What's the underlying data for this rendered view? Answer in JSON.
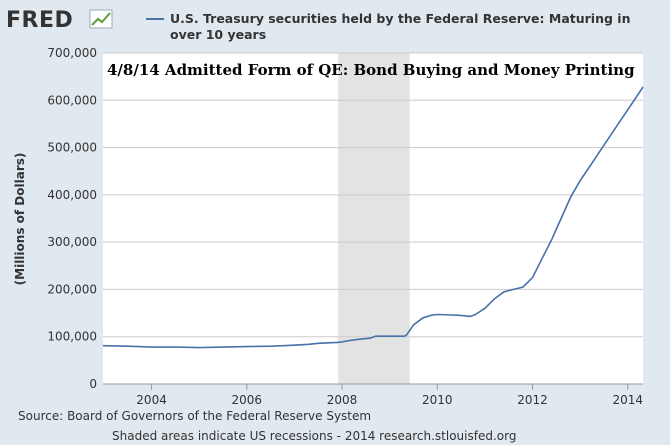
{
  "brand": {
    "logo": "FRED",
    "logo_icon": "trend-chart-icon"
  },
  "chart_data": {
    "type": "line",
    "series": [
      {
        "name": "U.S. Treasury securities held by the Federal Reserve: Maturing in over 10 years",
        "name_lines": [
          "U.S. Treasury securities held by the Federal Reserve: Maturing in",
          "over 10 years"
        ],
        "color": "#4572a7",
        "x": [
          2002.98,
          2003.5,
          2004.0,
          2004.5,
          2005.0,
          2005.5,
          2006.0,
          2006.5,
          2007.0,
          2007.3,
          2007.5,
          2007.9,
          2008.0,
          2008.1,
          2008.3,
          2008.6,
          2008.7,
          2009.0,
          2009.3,
          2009.35,
          2009.5,
          2009.7,
          2009.9,
          2010.0,
          2010.3,
          2010.5,
          2010.7,
          2010.8,
          2011.0,
          2011.2,
          2011.4,
          2011.6,
          2011.8,
          2011.9,
          2012.0,
          2012.2,
          2012.4,
          2012.6,
          2012.8,
          2013.0,
          2013.2,
          2013.4,
          2013.6,
          2013.8,
          2014.0,
          2014.2,
          2014.32
        ],
        "y": [
          81000,
          80000,
          78000,
          78000,
          77000,
          78000,
          79000,
          80000,
          82000,
          84000,
          86000,
          88000,
          89000,
          91000,
          94000,
          97000,
          101000,
          101000,
          101000,
          103000,
          125000,
          140000,
          146000,
          147000,
          146000,
          145000,
          143000,
          147000,
          160000,
          180000,
          195000,
          200000,
          205000,
          215000,
          225000,
          265000,
          305000,
          350000,
          395000,
          430000,
          460000,
          490000,
          520000,
          550000,
          580000,
          610000,
          628000
        ]
      }
    ],
    "recessions": [
      [
        2007.92,
        2009.42
      ]
    ],
    "title": "4/8/14 Admitted Form of QE: Bond Buying and Money Printing",
    "xlabel": "",
    "ylabel": "(Millions of Dollars)",
    "xlim": [
      2002.98,
      2014.32
    ],
    "ylim": [
      0,
      700000
    ],
    "x_ticks": [
      2004,
      2006,
      2008,
      2010,
      2012,
      2014
    ],
    "x_tick_labels": [
      "2004",
      "2006",
      "2008",
      "2010",
      "2012",
      "2014"
    ],
    "y_ticks": [
      0,
      100000,
      200000,
      300000,
      400000,
      500000,
      600000,
      700000
    ],
    "y_tick_labels": [
      "0",
      "100,000",
      "200,000",
      "300,000",
      "400,000",
      "500,000",
      "600,000",
      "700,000"
    ],
    "grid": true,
    "legend_position": "top",
    "colors": {
      "recession_shade": "#e3e3e3",
      "grid": "#cccccc",
      "plot_bg": "#ffffff",
      "page_bg": "#e1e9f0"
    }
  },
  "footer": {
    "source": "Source: Board of Governors of the Federal Reserve System",
    "note": "Shaded areas indicate US recessions - 2014 research.stlouisfed.org"
  }
}
